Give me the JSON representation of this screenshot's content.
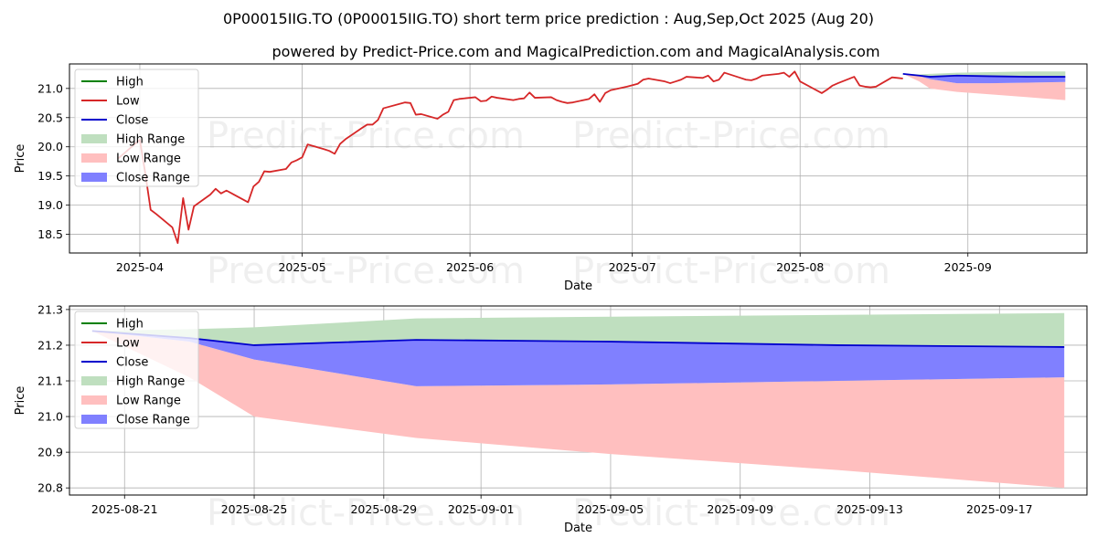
{
  "page": {
    "title": "0P00015IIG.TO (0P00015IIG.TO) short term price prediction : Aug,Sep,Oct 2025 (Aug 20)",
    "subtitle": "powered by Predict-Price.com and MagicalPrediction.com and MagicalAnalysis.com",
    "watermark": "Predict-Price.com"
  },
  "colors": {
    "high": "#008000",
    "low": "#d62728",
    "close": "#0000cc",
    "high_range": "#bfdfbf",
    "low_range": "#ffbfbf",
    "close_range": "#8080ff",
    "grid": "#b0b0b0"
  },
  "chart_data": [
    {
      "type": "line",
      "xlabel": "Date",
      "ylabel": "Price",
      "xlim": [
        "2025-03-19",
        "2025-09-23"
      ],
      "ylim": [
        18.18,
        21.42
      ],
      "xticks": [
        "2025-04",
        "2025-05",
        "2025-06",
        "2025-07",
        "2025-08",
        "2025-09"
      ],
      "xtick_dates": [
        "2025-04-01",
        "2025-05-01",
        "2025-06-01",
        "2025-07-01",
        "2025-08-01",
        "2025-09-01"
      ],
      "yticks": [
        "18.5",
        "19.0",
        "19.5",
        "20.0",
        "20.5",
        "21.0"
      ],
      "ytick_values": [
        18.5,
        19.0,
        19.5,
        20.0,
        20.5,
        21.0
      ],
      "grid": true,
      "legend_position": "top-left",
      "legend": [
        "High",
        "Low",
        "Close",
        "High Range",
        "Low Range",
        "Close Range"
      ],
      "series": [
        {
          "name": "Low",
          "x": [
            "2025-03-28",
            "2025-04-01",
            "2025-04-02",
            "2025-04-03",
            "2025-04-04",
            "2025-04-07",
            "2025-04-08",
            "2025-04-09",
            "2025-04-10",
            "2025-04-11",
            "2025-04-14",
            "2025-04-15",
            "2025-04-16",
            "2025-04-17",
            "2025-04-21",
            "2025-04-22",
            "2025-04-23",
            "2025-04-24",
            "2025-04-25",
            "2025-04-28",
            "2025-04-29",
            "2025-04-30",
            "2025-05-01",
            "2025-05-02",
            "2025-05-05",
            "2025-05-06",
            "2025-05-07",
            "2025-05-08",
            "2025-05-09",
            "2025-05-12",
            "2025-05-13",
            "2025-05-14",
            "2025-05-15",
            "2025-05-16",
            "2025-05-20",
            "2025-05-21",
            "2025-05-22",
            "2025-05-23",
            "2025-05-26",
            "2025-05-27",
            "2025-05-28",
            "2025-05-29",
            "2025-05-30",
            "2025-06-02",
            "2025-06-03",
            "2025-06-04",
            "2025-06-05",
            "2025-06-06",
            "2025-06-09",
            "2025-06-10",
            "2025-06-11",
            "2025-06-12",
            "2025-06-13",
            "2025-06-16",
            "2025-06-17",
            "2025-06-18",
            "2025-06-19",
            "2025-06-20",
            "2025-06-23",
            "2025-06-24",
            "2025-06-25",
            "2025-06-26",
            "2025-06-27",
            "2025-06-30",
            "2025-07-02",
            "2025-07-03",
            "2025-07-04",
            "2025-07-07",
            "2025-07-08",
            "2025-07-09",
            "2025-07-10",
            "2025-07-11",
            "2025-07-14",
            "2025-07-15",
            "2025-07-16",
            "2025-07-17",
            "2025-07-18",
            "2025-07-21",
            "2025-07-22",
            "2025-07-23",
            "2025-07-24",
            "2025-07-25",
            "2025-07-28",
            "2025-07-29",
            "2025-07-30",
            "2025-07-31",
            "2025-08-01",
            "2025-08-05",
            "2025-08-06",
            "2025-08-07",
            "2025-08-08",
            "2025-08-11",
            "2025-08-12",
            "2025-08-13",
            "2025-08-14",
            "2025-08-15",
            "2025-08-18",
            "2025-08-19",
            "2025-08-20"
          ],
          "values": [
            19.8,
            20.12,
            19.55,
            18.92,
            18.85,
            18.62,
            18.35,
            19.12,
            18.58,
            18.98,
            19.18,
            19.28,
            19.2,
            19.25,
            19.05,
            19.32,
            19.4,
            19.58,
            19.57,
            19.62,
            19.73,
            19.77,
            19.82,
            20.04,
            19.96,
            19.93,
            19.88,
            20.05,
            20.13,
            20.32,
            20.38,
            20.38,
            20.46,
            20.66,
            20.76,
            20.75,
            20.55,
            20.56,
            20.48,
            20.55,
            20.6,
            20.8,
            20.82,
            20.85,
            20.78,
            20.79,
            20.86,
            20.84,
            20.8,
            20.82,
            20.83,
            20.93,
            20.84,
            20.85,
            20.8,
            20.77,
            20.75,
            20.76,
            20.82,
            20.9,
            20.77,
            20.92,
            20.97,
            21.03,
            21.08,
            21.15,
            21.17,
            21.12,
            21.09,
            21.12,
            21.15,
            21.2,
            21.18,
            21.22,
            21.12,
            21.15,
            21.27,
            21.18,
            21.15,
            21.14,
            21.17,
            21.22,
            21.25,
            21.27,
            21.2,
            21.29,
            21.12,
            20.92,
            20.98,
            21.05,
            21.09,
            21.2,
            21.05,
            21.03,
            21.02,
            21.03,
            21.19,
            21.18,
            21.17
          ]
        },
        {
          "name": "Close",
          "x": [
            "2025-08-20",
            "2025-08-23",
            "2025-08-25",
            "2025-08-30",
            "2025-09-05",
            "2025-09-12",
            "2025-09-19"
          ],
          "values": [
            21.25,
            21.22,
            21.2,
            21.22,
            21.21,
            21.2,
            21.2
          ]
        },
        {
          "name": "High Range",
          "x": [
            "2025-08-20",
            "2025-08-23",
            "2025-08-25",
            "2025-08-30",
            "2025-09-05",
            "2025-09-12",
            "2025-09-19"
          ],
          "upper": [
            21.25,
            21.24,
            21.25,
            21.27,
            21.28,
            21.29,
            21.29
          ],
          "lower": [
            21.25,
            21.22,
            21.2,
            21.22,
            21.21,
            21.2,
            21.2
          ]
        },
        {
          "name": "Low Range",
          "x": [
            "2025-08-20",
            "2025-08-23",
            "2025-08-25",
            "2025-08-30",
            "2025-09-05",
            "2025-09-12",
            "2025-09-19"
          ],
          "upper": [
            21.25,
            21.22,
            21.16,
            21.09,
            21.09,
            21.1,
            21.11
          ],
          "lower": [
            21.25,
            21.12,
            21.0,
            20.94,
            20.9,
            20.85,
            20.8
          ]
        },
        {
          "name": "Close Range",
          "x": [
            "2025-08-20",
            "2025-08-23",
            "2025-08-25",
            "2025-08-30",
            "2025-09-05",
            "2025-09-12",
            "2025-09-19"
          ],
          "upper": [
            21.25,
            21.22,
            21.2,
            21.22,
            21.21,
            21.2,
            21.2
          ],
          "lower": [
            21.25,
            21.21,
            21.16,
            21.09,
            21.09,
            21.1,
            21.11
          ]
        }
      ]
    },
    {
      "type": "line",
      "xlabel": "Date",
      "ylabel": "Price",
      "xlim": [
        "2025-08-19.3",
        "2025-09-19.7"
      ],
      "ylim": [
        20.78,
        21.31
      ],
      "xticks": [
        "2025-08-21",
        "2025-08-25",
        "2025-08-29",
        "2025-09-01",
        "2025-09-05",
        "2025-09-09",
        "2025-09-13",
        "2025-09-17"
      ],
      "yticks": [
        "20.8",
        "20.9",
        "21.0",
        "21.1",
        "21.2",
        "21.3"
      ],
      "ytick_values": [
        20.8,
        20.9,
        21.0,
        21.1,
        21.2,
        21.3
      ],
      "grid": true,
      "legend_position": "top-left",
      "legend": [
        "High",
        "Low",
        "Close",
        "High Range",
        "Low Range",
        "Close Range"
      ],
      "series": [
        {
          "name": "Close",
          "x": [
            "2025-08-20",
            "2025-08-23",
            "2025-08-25",
            "2025-08-30",
            "2025-09-05",
            "2025-09-12",
            "2025-09-19"
          ],
          "values": [
            21.24,
            21.22,
            21.2,
            21.215,
            21.21,
            21.2,
            21.195
          ]
        },
        {
          "name": "High Range",
          "x": [
            "2025-08-20",
            "2025-08-23",
            "2025-08-25",
            "2025-08-30",
            "2025-09-05",
            "2025-09-12",
            "2025-09-19"
          ],
          "upper": [
            21.24,
            21.245,
            21.25,
            21.275,
            21.28,
            21.285,
            21.29
          ],
          "lower": [
            21.24,
            21.22,
            21.2,
            21.215,
            21.21,
            21.2,
            21.195
          ]
        },
        {
          "name": "Low Range",
          "x": [
            "2025-08-20",
            "2025-08-23",
            "2025-08-25",
            "2025-08-30",
            "2025-09-05",
            "2025-09-12",
            "2025-09-19"
          ],
          "upper": [
            21.24,
            21.21,
            21.16,
            21.085,
            21.09,
            21.1,
            21.11
          ],
          "lower": [
            21.24,
            21.11,
            21.0,
            20.94,
            20.895,
            20.85,
            20.8
          ]
        },
        {
          "name": "Close Range",
          "x": [
            "2025-08-20",
            "2025-08-23",
            "2025-08-25",
            "2025-08-30",
            "2025-09-05",
            "2025-09-12",
            "2025-09-19"
          ],
          "upper": [
            21.24,
            21.22,
            21.2,
            21.215,
            21.21,
            21.2,
            21.195
          ],
          "lower": [
            21.24,
            21.21,
            21.16,
            21.085,
            21.09,
            21.1,
            21.11
          ]
        }
      ]
    }
  ]
}
